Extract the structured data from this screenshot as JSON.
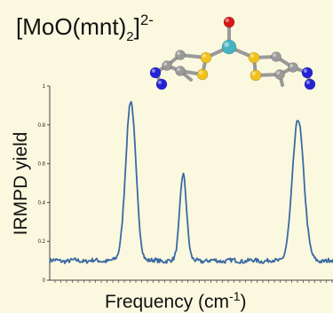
{
  "figure": {
    "title_prefix": "[MoO(mnt)",
    "title_subscript": "2",
    "title_close": "]",
    "title_charge": "2-"
  },
  "molecule": {
    "atom_colors": {
      "O": "#d81818",
      "Mo": "#46b3c3",
      "S": "#f2c31a",
      "C": "#9a9a9a",
      "N": "#2323d6"
    }
  },
  "chart_data": {
    "type": "line",
    "title": "",
    "xlabel_text": "Frequency (cm",
    "xlabel_superscript": "-1",
    "xlabel_close": ")",
    "ylabel": "IRMPD yield",
    "ylim": [
      0,
      1
    ],
    "yticks": [
      "0",
      "0.2",
      "0.4",
      "0.6",
      "0.8",
      "1"
    ],
    "x_tick_labels_shown": false,
    "grid": false,
    "line_color": "#3b6aa3",
    "baseline": 0.1,
    "peaks": [
      {
        "x": 0.286,
        "y": 0.92
      },
      {
        "x": 0.471,
        "y": 0.55
      },
      {
        "x": 0.877,
        "y": 0.83
      }
    ]
  }
}
